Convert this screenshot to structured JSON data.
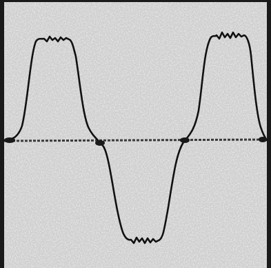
{
  "image": {
    "subject": "oscilloscope-trace",
    "background_color": "#d3d3d3",
    "speckle_dark_color": "#8c8c8c",
    "speckle_light_color": "#f2f2f2",
    "frame_color": "#1a1a1a",
    "trace_color": "#111111",
    "baseline_color": "#3a3a3a"
  }
}
